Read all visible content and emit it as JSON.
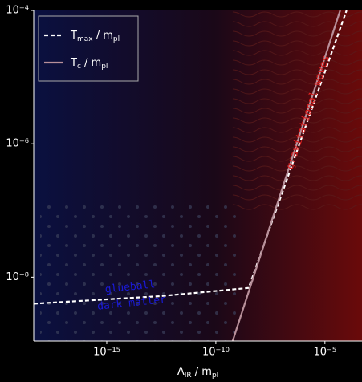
{
  "chart_data": {
    "type": "line",
    "log_x": true,
    "log_y": true,
    "grid": false,
    "xlim": [
      4.5e-19,
      0.0005
    ],
    "ylim": [
      1.1e-09,
      0.0001
    ],
    "xticks": [
      {
        "value": 1e-15,
        "label": "10⁻¹⁵"
      },
      {
        "value": 1e-10,
        "label": "10⁻¹⁰"
      },
      {
        "value": 1e-05,
        "label": "10⁻⁵"
      }
    ],
    "yticks": [
      {
        "value": 1e-08,
        "label": "10⁻⁸"
      },
      {
        "value": 1e-06,
        "label": "10⁻⁶"
      },
      {
        "value": 0.0001,
        "label": "10⁻⁴"
      }
    ],
    "x_label": [
      "Λ",
      "IR",
      " / m",
      "pl"
    ],
    "legend": "upper left",
    "series": [
      {
        "name": [
          "T",
          "max",
          " / m",
          "pl"
        ],
        "color": "#ffffff",
        "dash": true,
        "x": [
          4.5e-19,
          3e-13,
          3.2e-09,
          9.8e-05
        ],
        "values": [
          4e-09,
          5.2e-09,
          6.9e-09,
          0.0001
        ]
      },
      {
        "name": [
          "T",
          "c",
          " / m",
          "pl"
        ],
        "color": "#b8909a",
        "dash": false,
        "x": [
          5.9e-10,
          5e-05
        ],
        "values": [
          1.1e-09,
          0.0001
        ]
      }
    ],
    "annotations": [
      {
        "lines": [
          "glueball",
          "dark matter"
        ],
        "color": "#1a1ad8"
      },
      {
        "lines": [
          "gravitational waves"
        ],
        "color": "#e02020"
      }
    ]
  }
}
